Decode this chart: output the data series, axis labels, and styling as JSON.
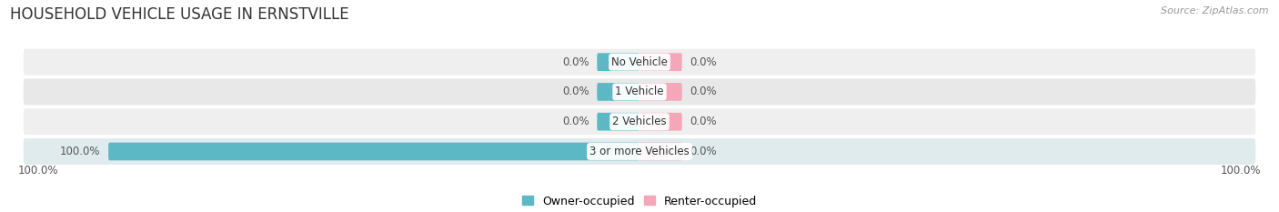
{
  "title": "HOUSEHOLD VEHICLE USAGE IN ERNSTVILLE",
  "source": "Source: ZipAtlas.com",
  "categories": [
    "No Vehicle",
    "1 Vehicle",
    "2 Vehicles",
    "3 or more Vehicles"
  ],
  "owner_values": [
    0.0,
    0.0,
    0.0,
    100.0
  ],
  "renter_values": [
    0.0,
    0.0,
    0.0,
    0.0
  ],
  "owner_color": "#5BB8C4",
  "renter_color": "#F4A7B9",
  "row_bg_light": "#F0F0F0",
  "row_bg_dark": "#E2E2E2",
  "title_fontsize": 12,
  "label_fontsize": 8.5,
  "tick_fontsize": 8.5,
  "source_fontsize": 8,
  "legend_fontsize": 9,
  "max_val": 100.0,
  "bar_height": 0.6,
  "figsize": [
    14.06,
    2.33
  ],
  "dpi": 100,
  "axis_label_left": "100.0%",
  "axis_label_right": "100.0%",
  "stub_size": 8.0
}
